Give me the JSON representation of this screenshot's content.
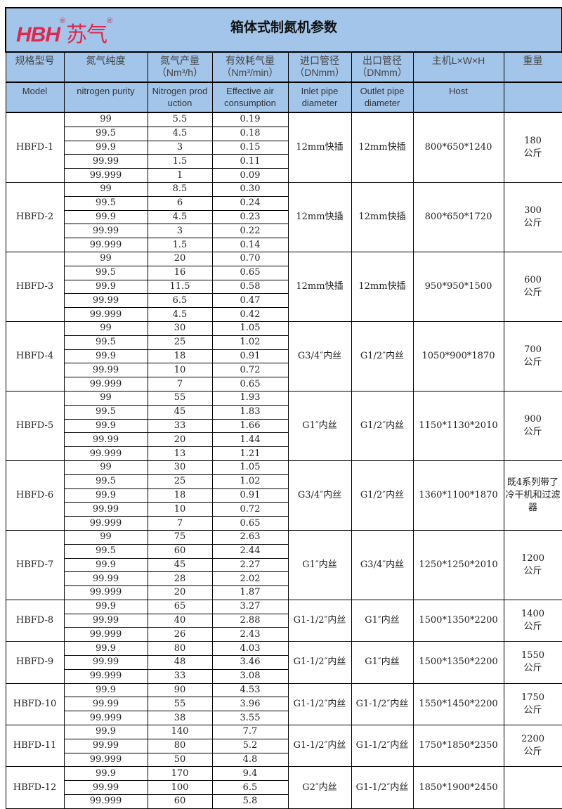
{
  "title": "箱体式制氮机参数",
  "logo": {
    "text": "HBH",
    "cn": "苏气",
    "mark": "®",
    "color": "#e0264c"
  },
  "header_bg": "#a3c5e9",
  "headers_cn": [
    "规格型号",
    "氮气纯度",
    "氮气产量\n（Nm³/h）",
    "有效耗气量\n（Nm³/min）",
    "进口管径\n（DNmm）",
    "出口管径\n（DNmm）",
    "主机L×W×H",
    "重量"
  ],
  "headers_en": [
    "Model",
    "nitrogen purity",
    "Nitrogen prod uction",
    "Effective air consumption",
    "Inlet pipe diameter",
    "Outlet pipe diameter",
    "Host",
    ""
  ],
  "models": [
    {
      "model": "HBFD-1",
      "inlet": "12mm快插",
      "outlet": "12mm快插",
      "size": "800*650*1240",
      "weight": "180\n公斤",
      "rows": [
        [
          "99",
          "5.5",
          "0.19"
        ],
        [
          "99.5",
          "4.5",
          "0.18"
        ],
        [
          "99.9",
          "3",
          "0.15"
        ],
        [
          "99.99",
          "1.5",
          "0.11"
        ],
        [
          "99.999",
          "1",
          "0.09"
        ]
      ]
    },
    {
      "model": "HBFD-2",
      "inlet": "12mm快插",
      "outlet": "12mm快插",
      "size": "800*650*1720",
      "weight": "300\n公斤",
      "rows": [
        [
          "99",
          "8.5",
          "0.30"
        ],
        [
          "99.5",
          "6",
          "0.24"
        ],
        [
          "99.9",
          "4.5",
          "0.23"
        ],
        [
          "99.99",
          "3",
          "0.22"
        ],
        [
          "99.999",
          "1.5",
          "0.14"
        ]
      ]
    },
    {
      "model": "HBFD-3",
      "inlet": "12mm快插",
      "outlet": "12mm快插",
      "size": "950*950*1500",
      "weight": "600\n公斤",
      "rows": [
        [
          "99",
          "20",
          "0.70"
        ],
        [
          "99.5",
          "16",
          "0.65"
        ],
        [
          "99.9",
          "11.5",
          "0.58"
        ],
        [
          "99.99",
          "6.5",
          "0.47"
        ],
        [
          "99.999",
          "4.5",
          "0.42"
        ]
      ]
    },
    {
      "model": "HBFD-4",
      "inlet": "G3/4″内丝",
      "outlet": "G1/2″内丝",
      "size": "1050*900*1870",
      "weight": "700\n公斤",
      "rows": [
        [
          "99",
          "30",
          "1.05"
        ],
        [
          "99.5",
          "25",
          "1.02"
        ],
        [
          "99.9",
          "18",
          "0.91"
        ],
        [
          "99.99",
          "10",
          "0.72"
        ],
        [
          "99.999",
          "7",
          "0.65"
        ]
      ]
    },
    {
      "model": "HBFD-5",
      "inlet": "G1″内丝",
      "outlet": "G1/2″内丝",
      "size": "1150*1130*2010",
      "weight": "900\n公斤",
      "rows": [
        [
          "99",
          "55",
          "1.93"
        ],
        [
          "99.5",
          "45",
          "1.83"
        ],
        [
          "99.9",
          "33",
          "1.66"
        ],
        [
          "99.99",
          "20",
          "1.44"
        ],
        [
          "99.999",
          "13",
          "1.21"
        ]
      ]
    },
    {
      "model": "HBFD-6",
      "inlet": "G3/4″内丝",
      "outlet": "G1/2″内丝",
      "size": "1360*1100*1870",
      "weight": "既4系列带了冷干机和过滤器",
      "rows": [
        [
          "99",
          "30",
          "1.05"
        ],
        [
          "99.5",
          "25",
          "1.02"
        ],
        [
          "99.9",
          "18",
          "0.91"
        ],
        [
          "99.99",
          "10",
          "0.72"
        ],
        [
          "99.999",
          "7",
          "0.65"
        ]
      ]
    },
    {
      "model": "HBFD-7",
      "inlet": "G1″内丝",
      "outlet": "G3/4″内丝",
      "size": "1250*1250*2010",
      "weight": "1200\n公斤",
      "rows": [
        [
          "99",
          "75",
          "2.63"
        ],
        [
          "99.5",
          "60",
          "2.44"
        ],
        [
          "99.9",
          "45",
          "2.27"
        ],
        [
          "99.99",
          "28",
          "2.02"
        ],
        [
          "99.999",
          "20",
          "1.87"
        ]
      ]
    },
    {
      "model": "HBFD-8",
      "inlet": "G1-1/2″内丝",
      "outlet": "G1″内丝",
      "size": "1500*1350*2200",
      "weight": "1400\n公斤",
      "rows": [
        [
          "99.9",
          "65",
          "3.27"
        ],
        [
          "99.99",
          "40",
          "2.88"
        ],
        [
          "99.999",
          "26",
          "2.43"
        ]
      ]
    },
    {
      "model": "HBFD-9",
      "inlet": "G1-1/2″内丝",
      "outlet": "G1″内丝",
      "size": "1500*1350*2200",
      "weight": "1550\n公斤",
      "rows": [
        [
          "99.9",
          "80",
          "4.03"
        ],
        [
          "99.99",
          "48",
          "3.46"
        ],
        [
          "99.999",
          "33",
          "3.08"
        ]
      ]
    },
    {
      "model": "HBFD-10",
      "inlet": "G1-1/2″内丝",
      "outlet": "G1-1/2″内丝",
      "size": "1550*1450*2200",
      "weight": "1750\n公斤",
      "rows": [
        [
          "99.9",
          "90",
          "4.53"
        ],
        [
          "99.99",
          "55",
          "3.96"
        ],
        [
          "99.999",
          "38",
          "3.55"
        ]
      ]
    },
    {
      "model": "HBFD-11",
      "inlet": "G1-1/2″内丝",
      "outlet": "G1-1/2″内丝",
      "size": "1750*1850*2350",
      "weight": "2200\n公斤",
      "rows": [
        [
          "99.9",
          "140",
          "7.7"
        ],
        [
          "99.99",
          "80",
          "5.2"
        ],
        [
          "99.999",
          "50",
          "4.8"
        ]
      ]
    },
    {
      "model": "HBFD-12",
      "inlet": "G2″内丝",
      "outlet": "G1-1/2″内丝",
      "size": "1850*1900*2450",
      "weight": "",
      "rows": [
        [
          "99.9",
          "170",
          "9.4"
        ],
        [
          "99.99",
          "100",
          "6.5"
        ],
        [
          "99.999",
          "60",
          "5.8"
        ]
      ]
    }
  ]
}
